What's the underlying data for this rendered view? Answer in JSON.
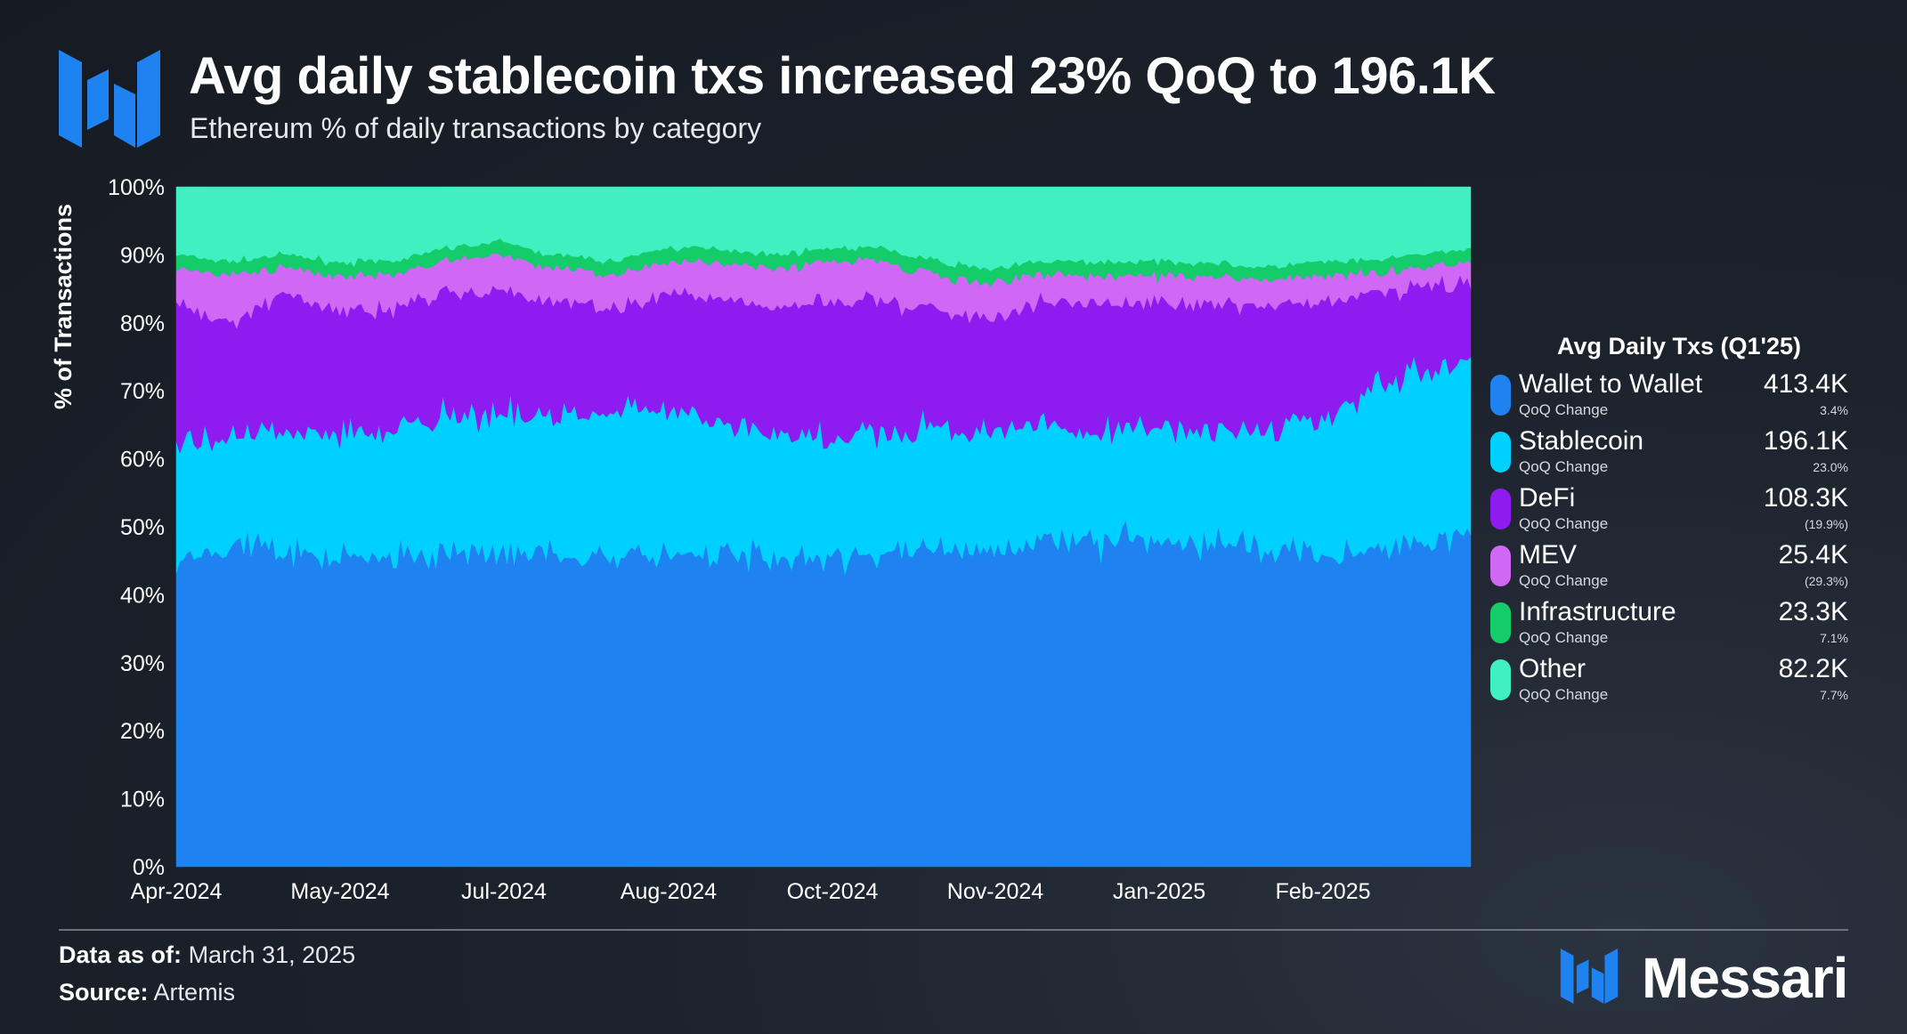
{
  "header": {
    "title": "Avg daily stablecoin txs increased 23% QoQ to 196.1K",
    "subtitle": "Ethereum % of daily transactions by category"
  },
  "legend": {
    "title": "Avg Daily Txs (Q1'25)",
    "items": [
      {
        "name": "Wallet to Wallet",
        "sub": "QoQ Change",
        "value": "413.4K",
        "change": "3.4%",
        "color": "#1e82f0"
      },
      {
        "name": "Stablecoin",
        "sub": "QoQ Change",
        "value": "196.1K",
        "change": "23.0%",
        "color": "#00d0ff"
      },
      {
        "name": "DeFi",
        "sub": "QoQ Change",
        "value": "108.3K",
        "change": "(19.9%)",
        "color": "#8e1cf0"
      },
      {
        "name": "MEV",
        "sub": "QoQ Change",
        "value": "25.4K",
        "change": "(29.3%)",
        "color": "#cf68f4"
      },
      {
        "name": "Infrastructure",
        "sub": "QoQ Change",
        "value": "23.3K",
        "change": "7.1%",
        "color": "#14cc6a"
      },
      {
        "name": "Other",
        "sub": "QoQ Change",
        "value": "82.2K",
        "change": "7.7%",
        "color": "#40f0c0"
      }
    ]
  },
  "chart_data": {
    "type": "area",
    "stacked": true,
    "ylabel": "% of Transactions",
    "y_ticks": [
      "0%",
      "10%",
      "20%",
      "30%",
      "40%",
      "50%",
      "60%",
      "70%",
      "80%",
      "90%",
      "100%"
    ],
    "ylim": [
      0,
      100
    ],
    "x_tick_labels": [
      "Apr-2024",
      "May-2024",
      "Jul-2024",
      "Aug-2024",
      "Oct-2024",
      "Nov-2024",
      "Jan-2025",
      "Feb-2025"
    ],
    "x_range": [
      "2024-04-01",
      "2025-03-31"
    ],
    "x": [
      "2024-04-01",
      "2024-04-16",
      "2024-05-01",
      "2024-05-16",
      "2024-06-01",
      "2024-06-16",
      "2024-07-01",
      "2024-07-16",
      "2024-08-01",
      "2024-08-16",
      "2024-09-01",
      "2024-09-16",
      "2024-10-01",
      "2024-10-16",
      "2024-11-01",
      "2024-11-16",
      "2024-12-01",
      "2024-12-16",
      "2025-01-01",
      "2025-01-16",
      "2025-02-01",
      "2025-02-16",
      "2025-03-01",
      "2025-03-16",
      "2025-03-31"
    ],
    "series": [
      {
        "name": "Wallet to Wallet",
        "color": "#1e82f0",
        "values": [
          45,
          47,
          47,
          46,
          45,
          46,
          47,
          46,
          45,
          46,
          46,
          45,
          45,
          46,
          47,
          47,
          48,
          48,
          48,
          47,
          47,
          46,
          47,
          48,
          49
        ]
      },
      {
        "name": "Stablecoin",
        "color": "#00d0ff",
        "values": [
          17,
          16,
          17,
          18,
          19,
          20,
          20,
          20,
          21,
          21,
          20,
          18,
          18,
          18,
          18,
          17,
          17,
          16,
          16,
          17,
          17,
          20,
          23,
          25,
          26
        ]
      },
      {
        "name": "DeFi",
        "color": "#8e1cf0",
        "values": [
          21,
          17,
          20,
          18,
          18,
          18,
          18,
          17,
          16,
          17,
          18,
          19,
          20,
          19,
          17,
          17,
          18,
          19,
          19,
          19,
          18,
          17,
          14,
          12,
          11
        ]
      },
      {
        "name": "MEV",
        "color": "#cf68f4",
        "values": [
          5,
          7,
          4,
          5,
          5,
          5,
          5,
          5,
          5,
          5,
          5,
          6,
          6,
          6,
          5,
          5,
          4,
          4,
          4,
          4,
          4,
          4,
          3,
          3,
          3
        ]
      },
      {
        "name": "Infrastructure",
        "color": "#14cc6a",
        "values": [
          2,
          2,
          2,
          2,
          2,
          2,
          2,
          2,
          2,
          2,
          2,
          2,
          2,
          2,
          2,
          2,
          2,
          2,
          2,
          2,
          2,
          2,
          2,
          2,
          2
        ]
      },
      {
        "name": "Other",
        "color": "#40f0c0",
        "values": [
          10,
          11,
          10,
          11,
          11,
          9,
          8,
          10,
          11,
          9,
          9,
          10,
          9,
          9,
          11,
          12,
          11,
          11,
          11,
          11,
          12,
          11,
          11,
          10,
          9
        ]
      }
    ]
  },
  "footer": {
    "date_label": "Data as of:",
    "date_value": "March 31, 2025",
    "source_label": "Source:",
    "source_value": "Artemis",
    "brand": "Messari"
  }
}
